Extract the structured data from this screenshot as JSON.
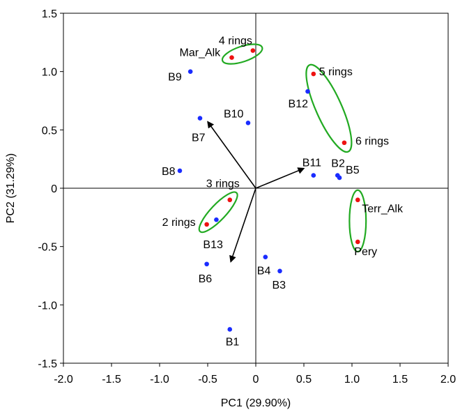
{
  "chart_data": {
    "type": "scatter",
    "title": "",
    "xlabel": "PC1 (29.90%)",
    "ylabel": "PC2 (31.29%)",
    "xlim": [
      -2.0,
      2.0
    ],
    "ylim": [
      -1.5,
      1.5
    ],
    "xticks": [
      -2.0,
      -1.5,
      -1.0,
      -0.5,
      0.0,
      0.5,
      1.0,
      1.5,
      2.0
    ],
    "yticks": [
      -1.5,
      -1.0,
      -0.5,
      0.0,
      0.5,
      1.0,
      1.5
    ],
    "xtick_labels": [
      "-2.0",
      "-1.5",
      "-1.0",
      "-0.5",
      "0",
      "0.5",
      "1.0",
      "1.5",
      "2.0"
    ],
    "ytick_labels": [
      "-1.5",
      "-1.0",
      "-0.5",
      "0",
      "0.5",
      "1.0",
      "1.5"
    ],
    "grid": false,
    "colors": {
      "samples": "#1a2cff",
      "compounds": "#ee1111",
      "groups": "#22aa22",
      "vectors": "#000000",
      "frame": "#000000"
    },
    "samples": [
      {
        "label": "B1",
        "x": -0.27,
        "y": -1.21
      },
      {
        "label": "B2",
        "x": 0.85,
        "y": 0.11
      },
      {
        "label": "B3",
        "x": 0.25,
        "y": -0.71
      },
      {
        "label": "B4",
        "x": 0.1,
        "y": -0.59
      },
      {
        "label": "B5",
        "x": 0.87,
        "y": 0.09
      },
      {
        "label": "B6",
        "x": -0.51,
        "y": -0.65
      },
      {
        "label": "B7",
        "x": -0.58,
        "y": 0.6
      },
      {
        "label": "B8",
        "x": -0.79,
        "y": 0.15
      },
      {
        "label": "B9",
        "x": -0.68,
        "y": 1.0
      },
      {
        "label": "B10",
        "x": -0.08,
        "y": 0.56
      },
      {
        "label": "B11",
        "x": 0.6,
        "y": 0.11
      },
      {
        "label": "B12",
        "x": 0.54,
        "y": 0.83
      },
      {
        "label": "B13",
        "x": -0.41,
        "y": -0.27
      }
    ],
    "compounds": [
      {
        "label": "4 rings",
        "x": -0.03,
        "y": 1.18
      },
      {
        "label": "Mar_Alk",
        "x": -0.25,
        "y": 1.12
      },
      {
        "label": "5 rings",
        "x": 0.6,
        "y": 0.98
      },
      {
        "label": "6 rings",
        "x": 0.92,
        "y": 0.39
      },
      {
        "label": "3 rings",
        "x": -0.27,
        "y": -0.1
      },
      {
        "label": "2 rings",
        "x": -0.51,
        "y": -0.31
      },
      {
        "label": "Terr_Alk",
        "x": 1.06,
        "y": -0.1
      },
      {
        "label": "Pery",
        "x": 1.06,
        "y": -0.46
      }
    ],
    "vectors": [
      {
        "x": -0.5,
        "y": 0.57
      },
      {
        "x": 0.5,
        "y": 0.17
      },
      {
        "x": -0.26,
        "y": -0.63
      }
    ],
    "groups": [
      {
        "members": [
          "4 rings",
          "Mar_Alk"
        ]
      },
      {
        "members": [
          "5 rings",
          "6 rings",
          "B12"
        ]
      },
      {
        "members": [
          "3 rings",
          "2 rings",
          "B13"
        ]
      },
      {
        "members": [
          "Terr_Alk",
          "Pery"
        ]
      }
    ]
  }
}
